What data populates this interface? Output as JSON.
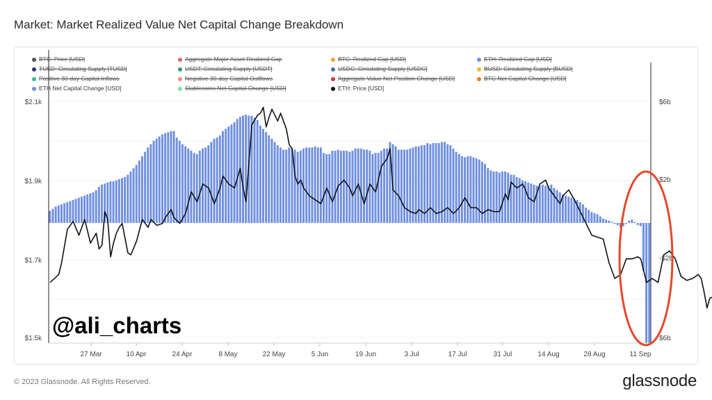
{
  "page": {
    "title": "Market: Market Realized Value Net Capital Change Breakdown",
    "footer": "© 2023 Glassnode. All Rights Reserved.",
    "brand": "glassnode",
    "watermark": "@ali_charts"
  },
  "legend": [
    {
      "label": "BTC: Price [USD]",
      "color": "#555555",
      "active": false
    },
    {
      "label": "Aggregate Major Asset Realized Cap",
      "color": "#e46a5d",
      "active": false
    },
    {
      "label": "BTC: Realized Cap [USD]",
      "color": "#f0a030",
      "active": false
    },
    {
      "label": "ETH: Realized Cap [USD]",
      "color": "#7b8fe0",
      "active": false
    },
    {
      "label": "TUSD: Circulating Supply [TUSD]",
      "color": "#2c3570",
      "active": false
    },
    {
      "label": "USDT: Circulating Supply [USDT]",
      "color": "#2f9d6e",
      "active": false
    },
    {
      "label": "USDC: Circulating Supply [USDC]",
      "color": "#4a6fae",
      "active": false
    },
    {
      "label": "BUSD: Circulating Supply [BUSD]",
      "color": "#e8b92d",
      "active": false
    },
    {
      "label": "Positive 30-day Capital Inflows",
      "color": "#3bbf8a",
      "active": false
    },
    {
      "label": "Negative 30-day Capital Outflows",
      "color": "#f08a8a",
      "active": false
    },
    {
      "label": "Aggregate Value Net Position Change [USD]",
      "color": "#d9383a",
      "active": false
    },
    {
      "label": "BTC Net Capital Change [USD]",
      "color": "#f07f1e",
      "active": false
    },
    {
      "label": "ETH Net Capital Change [USD]",
      "color": "#6f8fe0",
      "active": true
    },
    {
      "label": "Stablecoins Net Capital Change [USD]",
      "color": "#7fe0a8",
      "active": false
    },
    {
      "label": "ETH: Price [USD]",
      "color": "#111111",
      "active": true
    }
  ],
  "chart_data": {
    "type": "bar",
    "x_ticks": [
      "27 Mar",
      "10 Apr",
      "24 Apr",
      "8 May",
      "22 May",
      "5 Jun",
      "19 Jun",
      "3 Jul",
      "17 Jul",
      "31 Jul",
      "14 Aug",
      "28 Aug",
      "11 Sep"
    ],
    "left_axis": {
      "ticks": [
        "$2.1k",
        "$1.9k",
        "$1.7k",
        "$1.5k"
      ],
      "range": [
        1500,
        2100
      ]
    },
    "right_axis": {
      "ticks": [
        "$6b",
        "$2b",
        "-$2b",
        "$6b"
      ],
      "range": [
        -6,
        6
      ]
    },
    "bar_color": "#6f8fe0",
    "line_color": "#111111",
    "highlight": {
      "shape": "ellipse",
      "color": "#e6472a",
      "x_index_center": 201
    },
    "series": [
      {
        "name": "ETH Net Capital Change [USD]",
        "type": "bar",
        "values": [
          0.55,
          0.65,
          0.75,
          0.8,
          0.85,
          0.9,
          0.95,
          1.0,
          1.05,
          1.1,
          1.15,
          1.2,
          1.25,
          1.3,
          1.35,
          1.4,
          1.5,
          1.65,
          1.75,
          1.8,
          1.85,
          1.9,
          1.9,
          1.95,
          2.0,
          2.05,
          2.1,
          2.2,
          2.35,
          2.5,
          2.65,
          2.85,
          3.05,
          3.25,
          3.45,
          3.6,
          3.75,
          3.85,
          3.95,
          4.05,
          4.1,
          4.15,
          4.2,
          4.2,
          3.9,
          3.75,
          3.6,
          3.5,
          3.4,
          3.3,
          3.2,
          3.15,
          3.3,
          3.4,
          3.45,
          3.55,
          3.7,
          3.85,
          3.9,
          4.0,
          4.2,
          4.3,
          4.4,
          4.5,
          4.6,
          4.75,
          4.85,
          4.9,
          4.95,
          4.9,
          4.9,
          4.8,
          4.7,
          4.45,
          4.3,
          4.15,
          4.0,
          3.85,
          3.7,
          3.55,
          3.45,
          3.35,
          3.35,
          3.45,
          3.4,
          3.35,
          3.25,
          3.3,
          3.4,
          3.45,
          3.45,
          3.45,
          3.5,
          3.45,
          3.45,
          3.2,
          3.15,
          3.15,
          3.3,
          3.3,
          3.35,
          3.3,
          3.3,
          3.3,
          3.25,
          3.3,
          3.4,
          3.4,
          3.4,
          3.35,
          3.35,
          3.3,
          3.15,
          3.2,
          3.2,
          3.3,
          3.4,
          3.4,
          3.7,
          3.6,
          3.5,
          3.35,
          3.35,
          3.35,
          3.35,
          3.4,
          3.45,
          3.5,
          3.5,
          3.55,
          3.55,
          3.65,
          3.6,
          3.65,
          3.65,
          3.65,
          3.7,
          3.7,
          3.6,
          3.55,
          3.4,
          3.25,
          3.15,
          3.05,
          3.0,
          3.05,
          3.05,
          3.0,
          2.95,
          2.9,
          2.8,
          2.7,
          2.5,
          2.4,
          2.35,
          2.35,
          2.3,
          2.35,
          2.35,
          2.3,
          2.2,
          2.2,
          2.1,
          2.05,
          1.95,
          1.9,
          1.85,
          1.8,
          1.75,
          1.7,
          1.7,
          1.75,
          1.7,
          1.7,
          1.75,
          1.6,
          1.5,
          1.4,
          1.3,
          1.25,
          1.2,
          1.15,
          1.1,
          1.05,
          0.95,
          0.85,
          0.7,
          0.6,
          0.5,
          0.45,
          0.4,
          0.3,
          0.2,
          0.15,
          0.1,
          0.05,
          -0.05,
          -0.1,
          -0.2,
          -0.15,
          -0.05,
          0.1,
          0.15,
          0.05,
          -0.1,
          -0.15,
          -2.2,
          -5.5,
          -5.5
        ]
      },
      {
        "name": "ETH: Price [USD]",
        "type": "line",
        "points": [
          [
            0,
            1640
          ],
          [
            3,
            1660
          ],
          [
            4,
            1690
          ],
          [
            6,
            1775
          ],
          [
            8,
            1795
          ],
          [
            10,
            1760
          ],
          [
            12,
            1800
          ],
          [
            14,
            1740
          ],
          [
            16,
            1765
          ],
          [
            17,
            1725
          ],
          [
            18,
            1735
          ],
          [
            19,
            1820
          ],
          [
            20,
            1800
          ],
          [
            21,
            1705
          ],
          [
            22,
            1740
          ],
          [
            23,
            1765
          ],
          [
            24,
            1780
          ],
          [
            25,
            1790
          ],
          [
            27,
            1715
          ],
          [
            28,
            1710
          ],
          [
            30,
            1745
          ],
          [
            32,
            1800
          ],
          [
            34,
            1780
          ],
          [
            35,
            1800
          ],
          [
            37,
            1785
          ],
          [
            39,
            1790
          ],
          [
            40,
            1805
          ],
          [
            42,
            1825
          ],
          [
            43,
            1805
          ],
          [
            45,
            1790
          ],
          [
            47,
            1815
          ],
          [
            49,
            1870
          ],
          [
            51,
            1845
          ],
          [
            53,
            1890
          ],
          [
            55,
            1880
          ],
          [
            57,
            1840
          ],
          [
            59,
            1880
          ],
          [
            60,
            1910
          ],
          [
            62,
            1890
          ],
          [
            64,
            1880
          ],
          [
            66,
            1930
          ],
          [
            67,
            1880
          ],
          [
            68,
            1845
          ],
          [
            70,
            2040
          ],
          [
            72,
            2065
          ],
          [
            73,
            2070
          ],
          [
            74,
            2085
          ],
          [
            75,
            2035
          ],
          [
            76,
            2060
          ],
          [
            77,
            2080
          ],
          [
            79,
            2050
          ],
          [
            80,
            2070
          ],
          [
            82,
            2030
          ],
          [
            83,
            1990
          ],
          [
            84,
            1980
          ],
          [
            85,
            1910
          ],
          [
            86,
            1890
          ],
          [
            87,
            1900
          ],
          [
            88,
            1880
          ],
          [
            90,
            1860
          ],
          [
            92,
            1850
          ],
          [
            94,
            1840
          ],
          [
            96,
            1880
          ],
          [
            98,
            1845
          ],
          [
            100,
            1885
          ],
          [
            102,
            1900
          ],
          [
            104,
            1880
          ],
          [
            105,
            1860
          ],
          [
            107,
            1890
          ],
          [
            109,
            1840
          ],
          [
            111,
            1890
          ],
          [
            113,
            1870
          ],
          [
            115,
            1935
          ],
          [
            117,
            1955
          ],
          [
            118,
            1980
          ],
          [
            119,
            1875
          ],
          [
            121,
            1860
          ],
          [
            123,
            1830
          ],
          [
            125,
            1820
          ],
          [
            127,
            1815
          ],
          [
            128,
            1825
          ],
          [
            130,
            1815
          ],
          [
            132,
            1830
          ],
          [
            134,
            1815
          ],
          [
            136,
            1820
          ],
          [
            138,
            1830
          ],
          [
            140,
            1815
          ],
          [
            142,
            1830
          ],
          [
            144,
            1855
          ],
          [
            146,
            1830
          ],
          [
            148,
            1830
          ],
          [
            150,
            1815
          ],
          [
            152,
            1825
          ],
          [
            154,
            1820
          ],
          [
            156,
            1820
          ],
          [
            158,
            1865
          ],
          [
            159,
            1850
          ],
          [
            160,
            1895
          ],
          [
            162,
            1880
          ],
          [
            164,
            1890
          ],
          [
            165,
            1875
          ],
          [
            166,
            1855
          ],
          [
            168,
            1845
          ],
          [
            170,
            1890
          ],
          [
            172,
            1900
          ],
          [
            173,
            1880
          ],
          [
            175,
            1860
          ],
          [
            177,
            1840
          ],
          [
            178,
            1860
          ],
          [
            180,
            1875
          ],
          [
            182,
            1850
          ],
          [
            184,
            1820
          ],
          [
            186,
            1790
          ],
          [
            188,
            1760
          ],
          [
            190,
            1755
          ],
          [
            192,
            1750
          ],
          [
            194,
            1690
          ],
          [
            196,
            1650
          ],
          [
            198,
            1660
          ],
          [
            200,
            1700
          ],
          [
            202,
            1700
          ],
          [
            204,
            1705
          ],
          [
            205,
            1700
          ],
          [
            207,
            1640
          ],
          [
            209,
            1650
          ],
          [
            211,
            1640
          ],
          [
            213,
            1710
          ],
          [
            215,
            1720
          ],
          [
            217,
            1700
          ],
          [
            219,
            1655
          ],
          [
            220,
            1650
          ],
          [
            221,
            1645
          ],
          [
            223,
            1650
          ],
          [
            225,
            1660
          ],
          [
            226,
            1650
          ],
          [
            227,
            1615
          ],
          [
            228,
            1575
          ],
          [
            229,
            1600
          ],
          [
            231,
            1605
          ],
          [
            233,
            1625
          ],
          [
            234,
            1630
          ]
        ]
      }
    ]
  }
}
